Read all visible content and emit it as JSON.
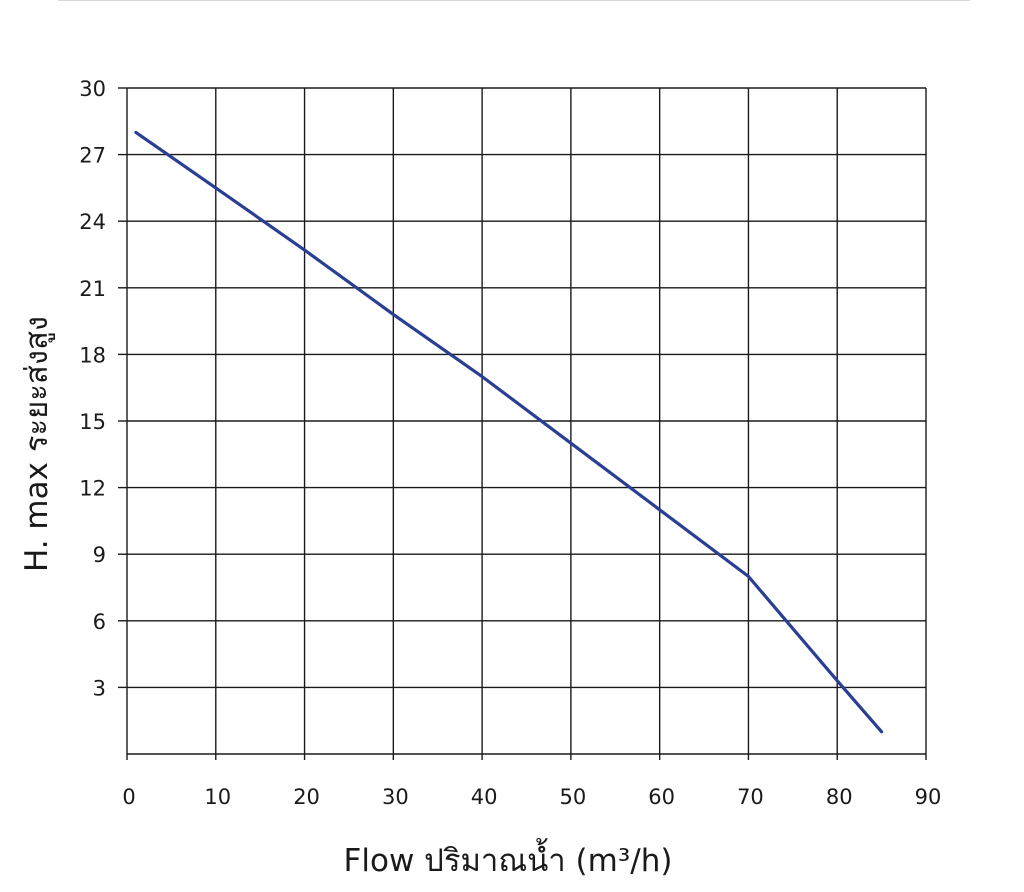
{
  "chart_data": {
    "type": "line",
    "title": "",
    "xlabel": "Flow  ปริมาณน้ำ (m³/h)",
    "ylabel": "H. max  ระยะส่งสูง",
    "xlim": [
      0,
      90
    ],
    "ylim": [
      0,
      30
    ],
    "x_ticks": [
      0,
      10,
      20,
      30,
      40,
      50,
      60,
      70,
      80,
      90
    ],
    "y_ticks": [
      3,
      6,
      9,
      12,
      15,
      18,
      21,
      24,
      27,
      30
    ],
    "grid": true,
    "legend": "none",
    "series": [
      {
        "color": "#2a3f93",
        "x": [
          1,
          10,
          20,
          30,
          40,
          50,
          60,
          70,
          80,
          85
        ],
        "y": [
          28,
          25.5,
          22.7,
          19.8,
          17,
          14,
          11,
          8,
          3.3,
          1
        ]
      }
    ]
  }
}
